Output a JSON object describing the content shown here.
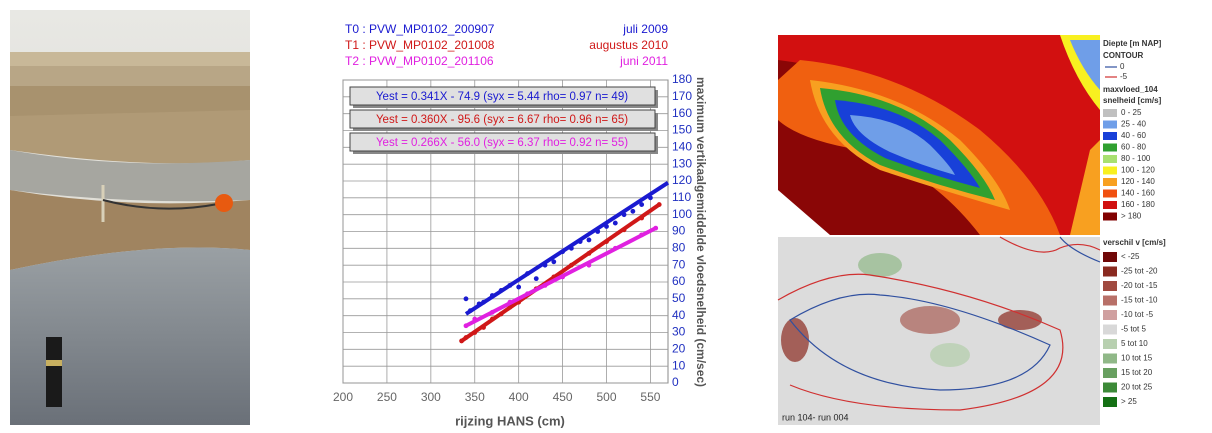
{
  "chart_data": {
    "type": "scatter",
    "xlabel": "rijzing HANS (cm)",
    "ylabel": "maximum vertikaalgemiddelde vloedsnelheid (cm/sec)",
    "xlim": [
      200,
      570
    ],
    "xticks": [
      200,
      250,
      300,
      350,
      400,
      450,
      500,
      550
    ],
    "ylim": [
      0,
      180
    ],
    "yticks": [
      0,
      10,
      20,
      30,
      40,
      50,
      60,
      70,
      80,
      90,
      100,
      110,
      120,
      130,
      140,
      150,
      160,
      170,
      180
    ],
    "grid": true,
    "series": [
      {
        "name": "T0 : PVW_MP0102_200907",
        "date": "juli 2009",
        "equation": "Yest = 0.341X - 74.9 (syx = 5.44 rho= 0.97 n= 49)",
        "color": "#1a1ad0",
        "x": [
          340,
          345,
          355,
          360,
          370,
          380,
          390,
          400,
          410,
          420,
          430,
          440,
          450,
          460,
          470,
          480,
          490,
          500,
          510,
          520,
          530,
          540,
          550
        ],
        "values": [
          50,
          43,
          47,
          48,
          52,
          55,
          58,
          57,
          65,
          62,
          70,
          72,
          78,
          80,
          84,
          85,
          90,
          93,
          95,
          100,
          102,
          106,
          110
        ],
        "fit": {
          "x": [
            340,
            570
          ],
          "values": [
            41,
            119
          ]
        }
      },
      {
        "name": "T1 : PVW_MP0102_201008",
        "date": "augustus 2010",
        "equation": "Yest = 0.360X - 95.6 (syx = 6.67 rho= 0.96 n= 65)",
        "color": "#d01818",
        "x": [
          335,
          340,
          350,
          360,
          370,
          380,
          390,
          400,
          420,
          440,
          460,
          480,
          500,
          520,
          540,
          560
        ],
        "values": [
          25,
          27,
          30,
          33,
          38,
          41,
          45,
          48,
          56,
          63,
          70,
          77,
          84,
          91,
          98,
          106
        ],
        "fit": {
          "x": [
            335,
            560
          ],
          "values": [
            25,
            106
          ]
        }
      },
      {
        "name": "T2 : PVW_MP0102_201106",
        "date": "juni 2011",
        "equation": "Yest = 0.266X - 56.0 (syx = 6.37 rho= 0.92 n= 55)",
        "color": "#e020e0",
        "x": [
          340,
          350,
          370,
          390,
          410,
          430,
          450,
          480,
          510,
          540,
          556
        ],
        "values": [
          34,
          38,
          42,
          48,
          53,
          58,
          63,
          70,
          80,
          88,
          92
        ],
        "fit": {
          "x": [
            340,
            556
          ],
          "values": [
            34,
            92
          ]
        }
      }
    ]
  },
  "map_legend": {
    "title": "Diepte [m NAP]",
    "contour_title": "CONTOUR",
    "contours": [
      {
        "label": "0",
        "color": "#3050a0"
      },
      {
        "label": "-5",
        "color": "#d03030"
      }
    ],
    "layer": "maxvloed_104",
    "speed_title": "snelheid [cm/s]",
    "speed": [
      {
        "label": "0 - 25",
        "color": "#c0c0c0"
      },
      {
        "label": "25 - 40",
        "color": "#6f9ee8"
      },
      {
        "label": "40 - 60",
        "color": "#1840d8"
      },
      {
        "label": "60 - 80",
        "color": "#30a030"
      },
      {
        "label": "80 - 100",
        "color": "#a8e070"
      },
      {
        "label": "100 - 120",
        "color": "#f8f020"
      },
      {
        "label": "120 - 140",
        "color": "#f8a020"
      },
      {
        "label": "140 - 160",
        "color": "#f05010"
      },
      {
        "label": "160 - 180",
        "color": "#d01010"
      },
      {
        "label": "> 180",
        "color": "#800000"
      }
    ],
    "diff_title": "verschil v [cm/s]",
    "diff": [
      {
        "label": "< -25",
        "color": "#700808"
      },
      {
        "label": "-25 tot -20",
        "color": "#8a2a20"
      },
      {
        "label": "-20 tot -15",
        "color": "#a04a40"
      },
      {
        "label": "-15 tot -10",
        "color": "#b87068"
      },
      {
        "label": "-10 tot -5",
        "color": "#d0a0a0"
      },
      {
        "label": "-5 tot 5",
        "color": "#d8d8d8"
      },
      {
        "label": "5 tot 10",
        "color": "#b8d0b0"
      },
      {
        "label": "10 tot 15",
        "color": "#90b888"
      },
      {
        "label": "15 tot 20",
        "color": "#68a060"
      },
      {
        "label": "20 tot 25",
        "color": "#3c8a38"
      },
      {
        "label": "> 25",
        "color": "#147014"
      }
    ]
  },
  "map_caption": "run 104- run 004"
}
